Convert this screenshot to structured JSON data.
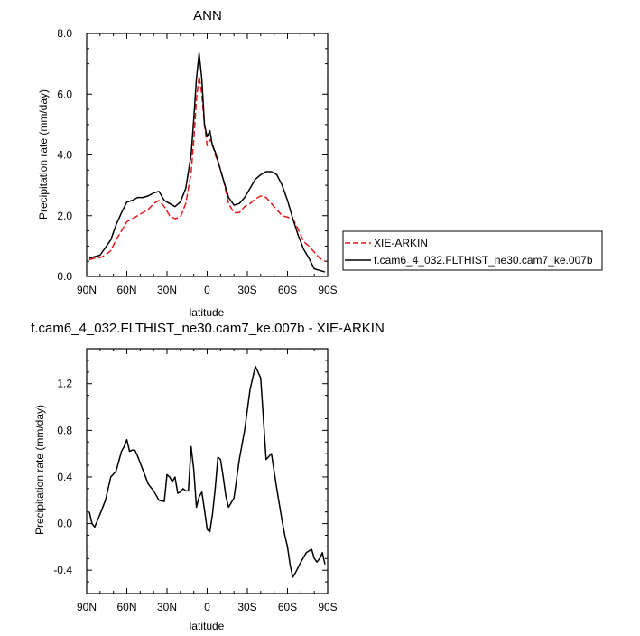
{
  "chart_data": [
    {
      "type": "line",
      "title": "ANN",
      "xlabel": "latitude",
      "ylabel": "Precipitation rate (mm/day)",
      "xlim": [
        90,
        -90
      ],
      "ylim": [
        0,
        8
      ],
      "x_ticks": [
        90,
        60,
        30,
        0,
        -30,
        -60,
        -90
      ],
      "x_tick_labels": [
        "90N",
        "60N",
        "30N",
        "0",
        "30S",
        "60S",
        "90S"
      ],
      "y_ticks": [
        0,
        2,
        4,
        6,
        8
      ],
      "y_tick_labels": [
        "0.0",
        "2.0",
        "4.0",
        "6.0",
        "8.0"
      ],
      "legend_position": "right",
      "series": [
        {
          "name": "XIE-ARKIN",
          "color": "#e41a1c",
          "dash": "dashed",
          "x": [
            88,
            84,
            80,
            76,
            72,
            68,
            64,
            60,
            56,
            52,
            48,
            44,
            40,
            36,
            32,
            28,
            24,
            20,
            16,
            12,
            10,
            8,
            6,
            4,
            2,
            0,
            -2,
            -4,
            -6,
            -8,
            -10,
            -12,
            -16,
            -20,
            -24,
            -28,
            -32,
            -36,
            -40,
            -44,
            -48,
            -52,
            -56,
            -60,
            -64,
            -68,
            -72,
            -76,
            -80,
            -84,
            -88
          ],
          "values": [
            0.55,
            0.6,
            0.62,
            0.7,
            0.85,
            1.2,
            1.5,
            1.8,
            1.9,
            2.0,
            2.1,
            2.2,
            2.4,
            2.5,
            2.3,
            2.0,
            1.9,
            1.95,
            2.4,
            3.4,
            4.5,
            5.8,
            6.6,
            6.0,
            5.0,
            4.3,
            4.5,
            4.4,
            4.0,
            3.8,
            3.5,
            3.2,
            2.4,
            2.1,
            2.1,
            2.3,
            2.4,
            2.55,
            2.65,
            2.6,
            2.4,
            2.2,
            2.0,
            1.95,
            1.9,
            1.55,
            1.15,
            1.0,
            0.8,
            0.6,
            0.5
          ]
        },
        {
          "name": "f.cam6_4_032.FLTHIST_ne30.cam7_ke.007b",
          "color": "#000000",
          "dash": "solid",
          "x": [
            88,
            84,
            80,
            76,
            72,
            68,
            64,
            60,
            56,
            52,
            48,
            44,
            40,
            36,
            32,
            28,
            24,
            20,
            16,
            12,
            10,
            8,
            6,
            4,
            2,
            0,
            -2,
            -4,
            -6,
            -8,
            -10,
            -12,
            -16,
            -20,
            -24,
            -28,
            -32,
            -36,
            -40,
            -44,
            -48,
            -52,
            -56,
            -60,
            -64,
            -68,
            -72,
            -76,
            -80,
            -84,
            -88
          ],
          "values": [
            0.6,
            0.65,
            0.7,
            0.95,
            1.2,
            1.7,
            2.1,
            2.45,
            2.5,
            2.6,
            2.6,
            2.65,
            2.75,
            2.8,
            2.5,
            2.4,
            2.3,
            2.45,
            2.9,
            4.0,
            5.2,
            6.5,
            7.35,
            6.5,
            5.0,
            4.6,
            4.8,
            4.3,
            4.1,
            3.8,
            3.5,
            3.2,
            2.6,
            2.35,
            2.4,
            2.6,
            2.9,
            3.2,
            3.35,
            3.45,
            3.45,
            3.35,
            3.0,
            2.5,
            1.9,
            1.35,
            0.9,
            0.6,
            0.25,
            0.2,
            0.15
          ]
        }
      ]
    },
    {
      "type": "line",
      "title": "f.cam6_4_032.FLTHIST_ne30.cam7_ke.007b - XIE-ARKIN",
      "xlabel": "latitude",
      "ylabel": "Precipitation rate (mm/day)",
      "xlim": [
        90,
        -90
      ],
      "ylim": [
        -0.6,
        1.5
      ],
      "x_ticks": [
        90,
        60,
        30,
        0,
        -30,
        -60,
        -90
      ],
      "x_tick_labels": [
        "90N",
        "60N",
        "30N",
        "0",
        "30S",
        "60S",
        "90S"
      ],
      "y_ticks": [
        -0.4,
        0,
        0.4,
        0.8,
        1.2
      ],
      "y_tick_labels": [
        "-0.4",
        "0.0",
        "0.4",
        "0.8",
        "1.2"
      ],
      "series": [
        {
          "color": "#000000",
          "x": [
            88,
            86,
            84,
            80,
            76,
            72,
            68,
            64,
            62,
            60,
            58,
            56,
            54,
            52,
            48,
            44,
            40,
            36,
            32,
            30,
            28,
            26,
            24,
            22,
            20,
            18,
            16,
            14,
            12,
            10,
            8,
            6,
            4,
            2,
            0,
            -2,
            -4,
            -6,
            -8,
            -10,
            -12,
            -14,
            -16,
            -20,
            -24,
            -28,
            -32,
            -36,
            -40,
            -44,
            -48,
            -52,
            -56,
            -58,
            -60,
            -62,
            -64,
            -66,
            -70,
            -74,
            -78,
            -80,
            -82,
            -84,
            -86,
            -88
          ],
          "values": [
            0.1,
            0.0,
            -0.03,
            0.08,
            0.2,
            0.4,
            0.45,
            0.62,
            0.66,
            0.72,
            0.62,
            0.63,
            0.63,
            0.58,
            0.46,
            0.34,
            0.28,
            0.2,
            0.19,
            0.42,
            0.4,
            0.36,
            0.4,
            0.26,
            0.27,
            0.3,
            0.28,
            0.28,
            0.66,
            0.46,
            0.14,
            0.23,
            0.27,
            0.12,
            -0.05,
            -0.07,
            0.08,
            0.3,
            0.57,
            0.55,
            0.4,
            0.23,
            0.14,
            0.22,
            0.55,
            0.8,
            1.15,
            1.35,
            1.25,
            0.55,
            0.6,
            0.3,
            0.02,
            -0.1,
            -0.2,
            -0.36,
            -0.46,
            -0.42,
            -0.33,
            -0.25,
            -0.22,
            -0.3,
            -0.33,
            -0.3,
            -0.25,
            -0.35
          ]
        }
      ]
    }
  ]
}
